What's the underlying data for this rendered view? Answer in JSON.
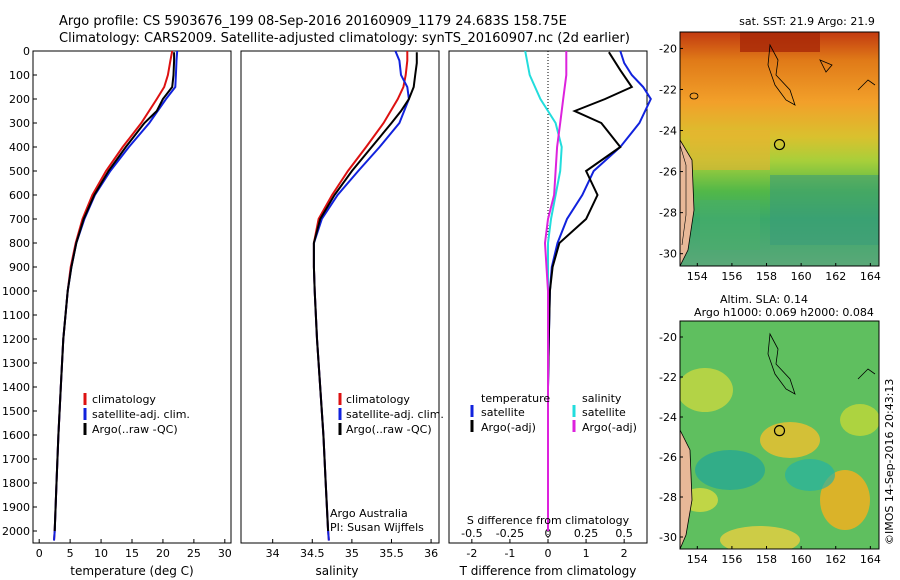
{
  "header": {
    "line1": "Argo profile: CS 5903676_199 08-Sep-2016 20160909_1179 24.683S 158.75E",
    "line2": "Climatology: CARS2009. Satellite-adjusted climatology: synTS_20160907.nc (2d earlier)"
  },
  "colors": {
    "climatology": "#dd1111",
    "satellite": "#1122dd",
    "argo": "#000000",
    "s_satellite": "#22dddd",
    "s_argo": "#dd22dd"
  },
  "chart_data": [
    {
      "type": "line",
      "panel": "temperature",
      "xlabel": "temperature (deg C)",
      "ylabel": "",
      "xlim": [
        -1,
        31
      ],
      "ylim": [
        2050,
        0
      ],
      "xticks": [
        "0",
        "5",
        "10",
        "15",
        "20",
        "25",
        "30"
      ],
      "xtick_values": [
        0,
        5,
        10,
        15,
        20,
        25,
        30
      ],
      "yticks": [
        "0",
        "100",
        "200",
        "300",
        "400",
        "500",
        "600",
        "700",
        "800",
        "900",
        "1000",
        "1100",
        "1200",
        "1300",
        "1400",
        "1500",
        "1600",
        "1700",
        "1800",
        "1900",
        "2000"
      ],
      "ytick_values": [
        0,
        100,
        200,
        300,
        400,
        500,
        600,
        700,
        800,
        900,
        1000,
        1100,
        1200,
        1300,
        1400,
        1500,
        1600,
        1700,
        1800,
        1900,
        2000
      ],
      "legend": [
        "climatology",
        "satellite-adj. clim.",
        "Argo(..raw -QC)"
      ],
      "series": [
        {
          "name": "climatology",
          "depth": [
            0,
            40,
            100,
            150,
            200,
            300,
            400,
            500,
            600,
            700,
            800,
            900,
            1000,
            1200,
            1400,
            1600,
            1800,
            2000,
            2040
          ],
          "values": [
            21.5,
            21.2,
            20.8,
            20.2,
            19.0,
            16.5,
            13.5,
            10.8,
            8.6,
            7.0,
            5.9,
            5.1,
            4.6,
            3.9,
            3.5,
            3.1,
            2.8,
            2.5,
            2.4
          ]
        },
        {
          "name": "satellite-adj. clim.",
          "depth": [
            0,
            40,
            100,
            150,
            200,
            300,
            400,
            500,
            600,
            700,
            800,
            900,
            1000,
            1200,
            1400,
            1600,
            1800,
            2000,
            2040
          ],
          "values": [
            22.3,
            22.2,
            22.1,
            22.0,
            20.5,
            17.8,
            14.5,
            11.5,
            9.0,
            7.3,
            6.0,
            5.2,
            4.6,
            3.9,
            3.5,
            3.1,
            2.8,
            2.5,
            2.4
          ]
        },
        {
          "name": "Argo(..raw -QC)",
          "depth": [
            5,
            40,
            100,
            150,
            200,
            250,
            300,
            400,
            500,
            600,
            700,
            800,
            900,
            1000,
            1200,
            1400,
            1600,
            1800,
            2000
          ],
          "values": [
            21.8,
            21.8,
            21.7,
            21.5,
            20.0,
            19.0,
            17.0,
            14.0,
            11.2,
            8.9,
            7.2,
            6.0,
            5.2,
            4.6,
            3.9,
            3.5,
            3.1,
            2.8,
            2.5
          ]
        }
      ]
    },
    {
      "type": "line",
      "panel": "salinity",
      "xlabel": "salinity",
      "ylabel": "",
      "xlim": [
        33.6,
        36.1
      ],
      "ylim": [
        2050,
        0
      ],
      "xticks": [
        "34",
        "34.5",
        "35",
        "35.5",
        "36"
      ],
      "xtick_values": [
        34,
        34.5,
        35,
        35.5,
        36
      ],
      "legend": [
        "climatology",
        "satellite-adj. clim.",
        "Argo(..raw -QC)"
      ],
      "annotations": [
        "Argo Australia",
        "PI: Susan Wijffels"
      ],
      "series": [
        {
          "name": "climatology",
          "depth": [
            0,
            40,
            100,
            150,
            200,
            300,
            400,
            500,
            600,
            700,
            800,
            900,
            1000,
            1200,
            1400,
            1600,
            1800,
            2000,
            2040
          ],
          "values": [
            35.7,
            35.7,
            35.68,
            35.65,
            35.58,
            35.4,
            35.18,
            34.95,
            34.75,
            34.58,
            34.52,
            34.52,
            34.53,
            34.56,
            34.6,
            34.64,
            34.67,
            34.7,
            34.71
          ]
        },
        {
          "name": "satellite-adj. clim.",
          "depth": [
            0,
            40,
            100,
            150,
            200,
            300,
            400,
            500,
            600,
            700,
            800,
            900,
            1000,
            1200,
            1400,
            1600,
            1800,
            2000,
            2040
          ],
          "values": [
            35.55,
            35.6,
            35.62,
            35.7,
            35.72,
            35.6,
            35.35,
            35.08,
            34.82,
            34.62,
            34.52,
            34.52,
            34.53,
            34.56,
            34.6,
            34.64,
            34.67,
            34.7,
            34.71
          ]
        },
        {
          "name": "Argo(..raw -QC)",
          "depth": [
            5,
            50,
            100,
            150,
            200,
            250,
            300,
            400,
            500,
            600,
            700,
            800,
            900,
            1000,
            1200,
            1400,
            1600,
            1800,
            2000
          ],
          "values": [
            35.82,
            35.82,
            35.8,
            35.78,
            35.72,
            35.62,
            35.5,
            35.25,
            35.0,
            34.78,
            34.6,
            34.52,
            34.52,
            34.53,
            34.56,
            34.6,
            34.64,
            34.67,
            34.7
          ]
        }
      ]
    },
    {
      "type": "line",
      "panel": "difference",
      "xlabel": "T difference from climatology",
      "xlabel_top": "S difference from climatology",
      "ylabel": "",
      "xlim": [
        -2.6,
        2.6
      ],
      "ylim": [
        2050,
        0
      ],
      "xticks": [
        "-2",
        "-1",
        "0",
        "1",
        "2"
      ],
      "xtick_values": [
        -2,
        -1,
        0,
        1,
        2
      ],
      "s_ticks": [
        "-0.5",
        "-0.25",
        "0",
        "0.25",
        "0.5"
      ],
      "s_tick_values": [
        -0.5,
        -0.25,
        0,
        0.25,
        0.5
      ],
      "legend_t_title": "temperature",
      "legend_s_title": "salinity",
      "legend": [
        "satellite",
        "Argo(-adj)",
        "satellite",
        "Argo(-adj)"
      ],
      "series": [
        {
          "name": "satellite",
          "depth": [
            0,
            50,
            100,
            150,
            200,
            300,
            400,
            500,
            600,
            700,
            800,
            900,
            1000,
            1200,
            1400,
            1600,
            1800,
            2000
          ],
          "values": [
            1.9,
            2.0,
            2.2,
            2.5,
            2.7,
            2.4,
            1.9,
            1.2,
            0.9,
            0.5,
            0.25,
            0.1,
            0.05,
            0.02,
            0.0,
            0.0,
            0.0,
            0.0
          ]
        },
        {
          "name": "Argo(-adj)",
          "depth": [
            5,
            80,
            150,
            200,
            250,
            300,
            400,
            500,
            600,
            700,
            800,
            900,
            1000,
            1200,
            1400,
            1600,
            1800,
            2000
          ],
          "values": [
            1.6,
            1.9,
            2.2,
            1.5,
            0.7,
            1.4,
            1.9,
            1.0,
            1.3,
            1.0,
            0.3,
            0.12,
            0.05,
            0.02,
            0.0,
            0.0,
            0.0,
            0.0
          ]
        },
        {
          "name": "satellite",
          "depth": [
            0,
            100,
            200,
            300,
            400,
            500,
            600,
            700,
            800,
            1000,
            1200,
            1400,
            1600,
            1800,
            2000
          ],
          "values": [
            -0.15,
            -0.12,
            -0.05,
            0.05,
            0.09,
            0.08,
            0.05,
            0.02,
            0.0,
            0.0,
            0.0,
            0.0,
            0.0,
            0.0,
            0.0
          ]
        },
        {
          "name": "Argo(-adj)",
          "depth": [
            0,
            100,
            200,
            300,
            400,
            500,
            600,
            700,
            800,
            1000,
            1200,
            1400,
            1600,
            1800,
            2000
          ],
          "values": [
            0.12,
            0.12,
            0.1,
            0.08,
            0.06,
            0.05,
            0.04,
            0.0,
            -0.02,
            0.0,
            0.0,
            0.0,
            0.0,
            0.0,
            0.0
          ]
        }
      ]
    },
    {
      "type": "heatmap",
      "panel": "sst-map",
      "title": "sat. SST: 21.9 Argo: 21.9",
      "xlim": [
        153,
        164.5
      ],
      "ylim": [
        -30.6,
        -19.2
      ],
      "xticks": [
        "154",
        "156",
        "158",
        "160",
        "162",
        "164"
      ],
      "xtick_values": [
        154,
        156,
        158,
        160,
        162,
        164
      ],
      "yticks": [
        "-20",
        "-22",
        "-24",
        "-26",
        "-28",
        "-30"
      ],
      "ytick_values": [
        -20,
        -22,
        -24,
        -26,
        -28,
        -30
      ],
      "marker": {
        "lon": 158.75,
        "lat": -24.683
      }
    },
    {
      "type": "heatmap",
      "panel": "sla-map",
      "title": "Altim. SLA: 0.14",
      "subtitle": "Argo h1000: 0.069 h2000: 0.084",
      "xlim": [
        153,
        164.5
      ],
      "ylim": [
        -30.6,
        -19.2
      ],
      "xticks": [
        "154",
        "156",
        "158",
        "160",
        "162",
        "164"
      ],
      "xtick_values": [
        154,
        156,
        158,
        160,
        162,
        164
      ],
      "yticks": [
        "-20",
        "-22",
        "-24",
        "-26",
        "-28",
        "-30"
      ],
      "ytick_values": [
        -20,
        -22,
        -24,
        -26,
        -28,
        -30
      ],
      "marker": {
        "lon": 158.75,
        "lat": -24.683
      }
    }
  ],
  "credit": "©IMOS 14-Sep-2016 20:43:13"
}
